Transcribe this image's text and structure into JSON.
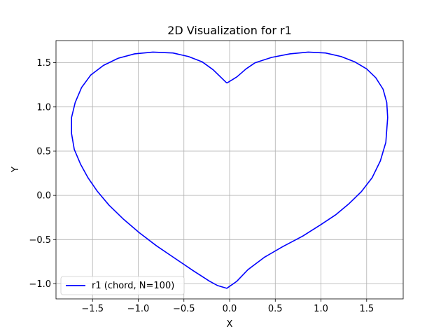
{
  "chart_data": {
    "type": "line",
    "title": "2D Visualization for r1",
    "xlabel": "X",
    "ylabel": "Y",
    "xlim": [
      -1.9,
      1.9
    ],
    "ylim": [
      -1.17,
      1.75
    ],
    "xticks": [
      -1.5,
      -1.0,
      -0.5,
      0.0,
      0.5,
      1.0,
      1.5
    ],
    "yticks": [
      -1.0,
      -0.5,
      0.0,
      0.5,
      1.0,
      1.5
    ],
    "grid": true,
    "legend_position": "lower-left",
    "series": [
      {
        "name": "r1 (chord, N=100)",
        "color": "#0000ff",
        "x": [
          -0.03,
          -0.18,
          -0.3,
          -0.45,
          -0.62,
          -0.84,
          -1.04,
          -1.22,
          -1.38,
          -1.52,
          -1.62,
          -1.69,
          -1.73,
          -1.73,
          -1.7,
          -1.63,
          -1.55,
          -1.45,
          -1.32,
          -1.16,
          -0.99,
          -0.8,
          -0.6,
          -0.4,
          -0.22,
          -0.13,
          -0.03,
          0.08,
          0.2,
          0.38,
          0.58,
          0.8,
          1.0,
          1.16,
          1.3,
          1.44,
          1.56,
          1.65,
          1.71,
          1.73,
          1.72,
          1.68,
          1.6,
          1.5,
          1.37,
          1.22,
          1.05,
          0.86,
          0.66,
          0.46,
          0.28,
          0.18,
          0.08,
          -0.03
        ],
        "y": [
          1.27,
          1.42,
          1.51,
          1.57,
          1.61,
          1.62,
          1.6,
          1.55,
          1.47,
          1.36,
          1.22,
          1.05,
          0.88,
          0.7,
          0.52,
          0.35,
          0.2,
          0.05,
          -0.11,
          -0.27,
          -0.42,
          -0.57,
          -0.71,
          -0.85,
          -0.97,
          -1.02,
          -1.05,
          -0.97,
          -0.84,
          -0.7,
          -0.58,
          -0.46,
          -0.33,
          -0.22,
          -0.1,
          0.04,
          0.2,
          0.39,
          0.6,
          0.88,
          1.05,
          1.2,
          1.33,
          1.43,
          1.51,
          1.57,
          1.61,
          1.62,
          1.6,
          1.56,
          1.5,
          1.43,
          1.34,
          1.27
        ]
      }
    ]
  }
}
